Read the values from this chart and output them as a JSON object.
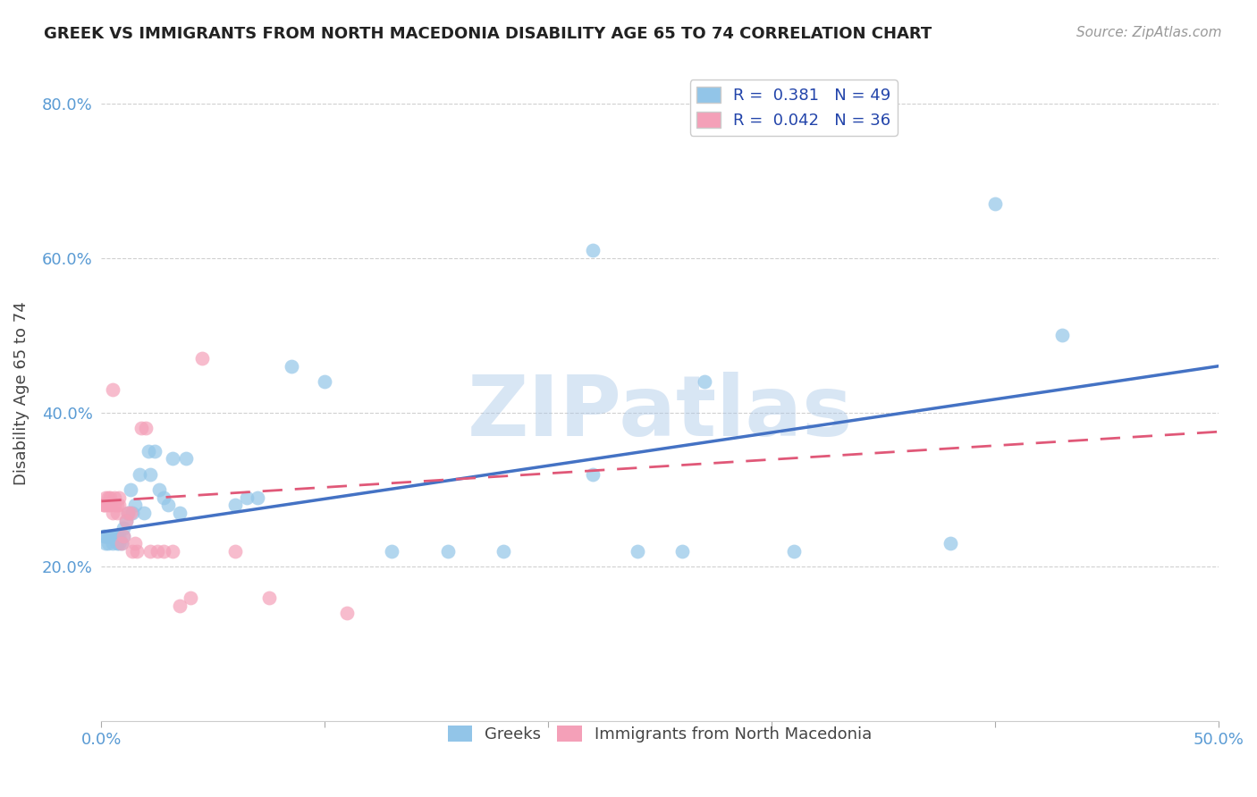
{
  "title": "GREEK VS IMMIGRANTS FROM NORTH MACEDONIA DISABILITY AGE 65 TO 74 CORRELATION CHART",
  "source": "Source: ZipAtlas.com",
  "ylabel": "Disability Age 65 to 74",
  "xlim": [
    0.0,
    0.5
  ],
  "ylim": [
    0.0,
    0.85
  ],
  "xticks": [
    0.0,
    0.1,
    0.2,
    0.3,
    0.4,
    0.5
  ],
  "xticklabels": [
    "0.0%",
    "",
    "",
    "",
    "",
    "50.0%"
  ],
  "yticks": [
    0.2,
    0.4,
    0.6,
    0.8
  ],
  "yticklabels": [
    "20.0%",
    "40.0%",
    "60.0%",
    "80.0%"
  ],
  "legend_label1": "R =  0.381   N = 49",
  "legend_label2": "R =  0.042   N = 36",
  "color_blue": "#92C5E8",
  "color_pink": "#F4A0B8",
  "line_color_blue": "#4472C4",
  "line_color_pink": "#E05878",
  "watermark": "ZIPatlas",
  "blue_x": [
    0.001,
    0.002,
    0.002,
    0.003,
    0.003,
    0.004,
    0.005,
    0.005,
    0.006,
    0.007,
    0.007,
    0.008,
    0.008,
    0.009,
    0.01,
    0.01,
    0.011,
    0.012,
    0.013,
    0.014,
    0.015,
    0.017,
    0.019,
    0.021,
    0.022,
    0.024,
    0.026,
    0.028,
    0.03,
    0.032,
    0.035,
    0.038,
    0.06,
    0.065,
    0.07,
    0.085,
    0.1,
    0.13,
    0.155,
    0.18,
    0.22,
    0.27,
    0.22,
    0.26,
    0.31,
    0.38,
    0.4,
    0.43,
    0.24
  ],
  "blue_y": [
    0.24,
    0.23,
    0.24,
    0.23,
    0.24,
    0.24,
    0.23,
    0.24,
    0.24,
    0.23,
    0.24,
    0.23,
    0.24,
    0.23,
    0.24,
    0.25,
    0.26,
    0.27,
    0.3,
    0.27,
    0.28,
    0.32,
    0.27,
    0.35,
    0.32,
    0.35,
    0.3,
    0.29,
    0.28,
    0.34,
    0.27,
    0.34,
    0.28,
    0.29,
    0.29,
    0.46,
    0.44,
    0.22,
    0.22,
    0.22,
    0.61,
    0.44,
    0.32,
    0.22,
    0.22,
    0.23,
    0.67,
    0.5,
    0.22
  ],
  "pink_x": [
    0.001,
    0.001,
    0.002,
    0.002,
    0.003,
    0.003,
    0.004,
    0.004,
    0.005,
    0.005,
    0.006,
    0.006,
    0.007,
    0.007,
    0.008,
    0.008,
    0.009,
    0.01,
    0.011,
    0.012,
    0.013,
    0.014,
    0.015,
    0.016,
    0.018,
    0.02,
    0.022,
    0.025,
    0.028,
    0.032,
    0.035,
    0.04,
    0.045,
    0.06,
    0.075,
    0.11
  ],
  "pink_y": [
    0.28,
    0.28,
    0.28,
    0.29,
    0.28,
    0.29,
    0.28,
    0.29,
    0.27,
    0.43,
    0.28,
    0.29,
    0.27,
    0.28,
    0.28,
    0.29,
    0.23,
    0.24,
    0.26,
    0.27,
    0.27,
    0.22,
    0.23,
    0.22,
    0.38,
    0.38,
    0.22,
    0.22,
    0.22,
    0.22,
    0.15,
    0.16,
    0.47,
    0.22,
    0.16,
    0.14
  ],
  "blue_line_x0": 0.0,
  "blue_line_x1": 0.5,
  "blue_line_y0": 0.245,
  "blue_line_y1": 0.46,
  "pink_line_x0": 0.0,
  "pink_line_x1": 0.5,
  "pink_line_y0": 0.285,
  "pink_line_y1": 0.375
}
